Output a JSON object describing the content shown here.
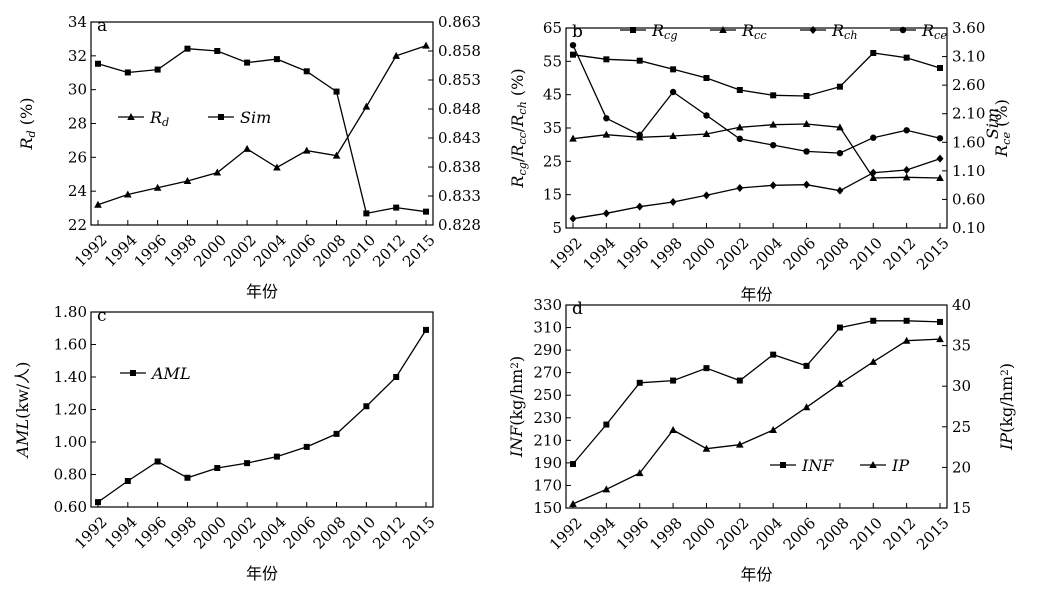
{
  "chart_data": [
    {
      "type": "line",
      "panel": "a",
      "x": [
        "1992",
        "1994",
        "1996",
        "1998",
        "2000",
        "2002",
        "2004",
        "2006",
        "2008",
        "2010",
        "2012",
        "2015"
      ],
      "xlabel": "年份",
      "left_axis": {
        "label_parts": [
          {
            "t": "R",
            "italic": true
          },
          {
            "t": "d",
            "sub": true,
            "italic": true
          },
          {
            "t": " (%)"
          }
        ],
        "range": [
          22,
          34
        ],
        "ticks": [
          "22",
          "24",
          "26",
          "28",
          "30",
          "32",
          "34"
        ]
      },
      "right_axis": {
        "label_parts": [
          {
            "t": "Sim",
            "italic": true
          }
        ],
        "range": [
          0.828,
          0.863
        ],
        "ticks": [
          "0.828",
          "0.833",
          "0.838",
          "0.843",
          "0.848",
          "0.853",
          "0.858",
          "0.863"
        ]
      },
      "legend": {
        "placement": "middle-left"
      },
      "series": [
        {
          "name": "Rd",
          "name_parts": [
            {
              "t": "R",
              "italic": true
            },
            {
              "t": "d",
              "sub": true,
              "italic": true
            }
          ],
          "axis": "left",
          "marker": "triangle",
          "values": [
            23.2,
            23.8,
            24.2,
            24.6,
            25.1,
            26.5,
            25.4,
            26.4,
            26.1,
            29.0,
            32.0,
            32.6
          ]
        },
        {
          "name": "Sim",
          "name_parts": [
            {
              "t": "Sim",
              "italic": true
            }
          ],
          "axis": "right",
          "marker": "square",
          "values": [
            0.8558,
            0.8543,
            0.8548,
            0.8584,
            0.858,
            0.856,
            0.8566,
            0.8545,
            0.851,
            0.83,
            0.831,
            0.8303
          ]
        }
      ]
    },
    {
      "type": "line",
      "panel": "b",
      "x": [
        "1992",
        "1994",
        "1996",
        "1998",
        "2000",
        "2002",
        "2004",
        "2006",
        "2008",
        "2010",
        "2012",
        "2015"
      ],
      "xlabel": "年份",
      "left_axis": {
        "label_parts": [
          {
            "t": "R",
            "italic": true
          },
          {
            "t": "cg",
            "sub": true,
            "italic": true
          },
          {
            "t": "/"
          },
          {
            "t": "R",
            "italic": true
          },
          {
            "t": "cc",
            "sub": true,
            "italic": true
          },
          {
            "t": "/"
          },
          {
            "t": "R",
            "italic": true
          },
          {
            "t": "ch",
            "sub": true,
            "italic": true
          },
          {
            "t": " (%)"
          }
        ],
        "range": [
          5,
          65
        ],
        "ticks": [
          "5",
          "15",
          "25",
          "35",
          "45",
          "55",
          "65"
        ]
      },
      "right_axis": {
        "label_parts": [
          {
            "t": "R",
            "italic": true
          },
          {
            "t": "ce",
            "sub": true,
            "italic": true
          },
          {
            "t": " (%)"
          }
        ],
        "range": [
          0.1,
          3.6
        ],
        "ticks": [
          "0.10",
          "0.60",
          "1.10",
          "1.60",
          "2.10",
          "2.60",
          "3.10",
          "3.60"
        ]
      },
      "legend": {
        "placement": "top"
      },
      "series": [
        {
          "name": "Rcg",
          "name_parts": [
            {
              "t": "R",
              "italic": true
            },
            {
              "t": "cg",
              "sub": true,
              "italic": true
            }
          ],
          "axis": "left",
          "marker": "square",
          "values": [
            57.0,
            55.6,
            55.2,
            52.6,
            50.0,
            46.4,
            44.8,
            44.6,
            47.4,
            57.5,
            56.1,
            53.0
          ]
        },
        {
          "name": "Rcc",
          "name_parts": [
            {
              "t": "R",
              "italic": true
            },
            {
              "t": "cc",
              "sub": true,
              "italic": true
            }
          ],
          "axis": "left",
          "marker": "triangle",
          "values": [
            31.8,
            33.0,
            32.2,
            32.6,
            33.2,
            35.2,
            36.0,
            36.2,
            35.2,
            20.0,
            20.2,
            20.0
          ]
        },
        {
          "name": "Rch",
          "name_parts": [
            {
              "t": "R",
              "italic": true
            },
            {
              "t": "ch",
              "sub": true,
              "italic": true
            }
          ],
          "axis": "left",
          "marker": "diamond",
          "values": [
            7.8,
            9.4,
            11.4,
            12.8,
            14.8,
            17.0,
            17.8,
            18.0,
            16.2,
            21.6,
            22.4,
            25.8
          ]
        },
        {
          "name": "Rce",
          "name_parts": [
            {
              "t": "R",
              "italic": true
            },
            {
              "t": "ce",
              "sub": true,
              "italic": true
            }
          ],
          "axis": "right",
          "marker": "circle",
          "values": [
            3.3,
            2.02,
            1.73,
            2.48,
            2.07,
            1.66,
            1.55,
            1.44,
            1.41,
            1.68,
            1.81,
            1.67
          ]
        }
      ]
    },
    {
      "type": "line",
      "panel": "c",
      "x": [
        "1992",
        "1994",
        "1996",
        "1998",
        "2000",
        "2002",
        "2004",
        "2006",
        "2008",
        "2010",
        "2012",
        "2015"
      ],
      "xlabel": "年份",
      "left_axis": {
        "label_parts": [
          {
            "t": "AML",
            "italic": true
          },
          {
            "t": "(kw/人)"
          }
        ],
        "range": [
          0.6,
          1.8
        ],
        "ticks": [
          "0.60",
          "0.80",
          "1.00",
          "1.20",
          "1.40",
          "1.60",
          "1.80"
        ]
      },
      "legend": {
        "placement": "top-left"
      },
      "series": [
        {
          "name": "AML",
          "name_parts": [
            {
              "t": "AML",
              "italic": true
            }
          ],
          "axis": "left",
          "marker": "square",
          "values": [
            0.63,
            0.76,
            0.88,
            0.78,
            0.84,
            0.87,
            0.91,
            0.97,
            1.05,
            1.22,
            1.4,
            1.69
          ]
        }
      ]
    },
    {
      "type": "line",
      "panel": "d",
      "x": [
        "1992",
        "1994",
        "1996",
        "1998",
        "2000",
        "2002",
        "2004",
        "2006",
        "2008",
        "2010",
        "2012",
        "2015"
      ],
      "xlabel": "年份",
      "left_axis": {
        "label_parts": [
          {
            "t": "INF",
            "italic": true
          },
          {
            "t": "(kg/hm"
          },
          {
            "t": "2",
            "sup": true
          },
          {
            "t": ")"
          }
        ],
        "range": [
          150,
          330
        ],
        "ticks": [
          "150",
          "170",
          "190",
          "210",
          "230",
          "250",
          "270",
          "290",
          "310",
          "330"
        ]
      },
      "right_axis": {
        "label_parts": [
          {
            "t": "IP",
            "italic": true
          },
          {
            "t": "(kg/hm"
          },
          {
            "t": "2",
            "sup": true
          },
          {
            "t": ")"
          }
        ],
        "range": [
          15,
          40
        ],
        "ticks": [
          "15",
          "20",
          "25",
          "30",
          "35",
          "40"
        ]
      },
      "legend": {
        "placement": "bottom-right"
      },
      "series": [
        {
          "name": "INF",
          "name_parts": [
            {
              "t": "INF",
              "italic": true
            }
          ],
          "axis": "left",
          "marker": "square",
          "values": [
            189,
            224,
            261,
            263,
            274,
            263,
            286,
            276,
            310,
            316,
            316,
            315
          ]
        },
        {
          "name": "IP",
          "name_parts": [
            {
              "t": "IP",
              "italic": true
            }
          ],
          "axis": "right",
          "marker": "triangle",
          "values": [
            15.5,
            17.3,
            19.3,
            24.6,
            22.3,
            22.8,
            24.6,
            27.4,
            30.3,
            33.0,
            35.6,
            35.8
          ]
        }
      ]
    }
  ]
}
